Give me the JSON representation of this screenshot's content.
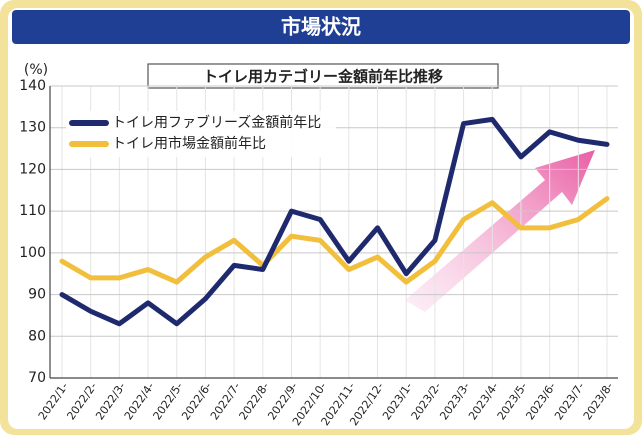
{
  "header": "市場状況",
  "chart_data": {
    "type": "line",
    "title": "トイレ用カテゴリー金額前年比推移",
    "ylabel": "(%)",
    "categories": [
      "2022/1-",
      "2022/2-",
      "2022/3-",
      "2022/4-",
      "2022/5-",
      "2022/6-",
      "2022/7-",
      "2022/8-",
      "2022/9-",
      "2022/10-",
      "2022/11-",
      "2022/12-",
      "2023/1-",
      "2023/2-",
      "2023/3-",
      "2023/4-",
      "2023/5-",
      "2023/6-",
      "2023/7-",
      "2023/8-"
    ],
    "series": [
      {
        "name": "トイレ用ファブリーズ金額前年比",
        "color": "#1f2a6e",
        "values": [
          90,
          86,
          83,
          88,
          83,
          89,
          97,
          96,
          110,
          108,
          98,
          106,
          95,
          103,
          131,
          132,
          123,
          129,
          127,
          126
        ]
      },
      {
        "name": "トイレ用市場金額前年比",
        "color": "#f2bf3c",
        "values": [
          98,
          94,
          94,
          96,
          93,
          99,
          103,
          97,
          104,
          103,
          96,
          99,
          93,
          98,
          108,
          112,
          106,
          106,
          108,
          113
        ]
      }
    ],
    "ylim": [
      70,
      140
    ],
    "yticks": [
      70,
      80,
      90,
      100,
      110,
      120,
      130,
      140
    ],
    "grid": true,
    "legend": "upper left"
  }
}
